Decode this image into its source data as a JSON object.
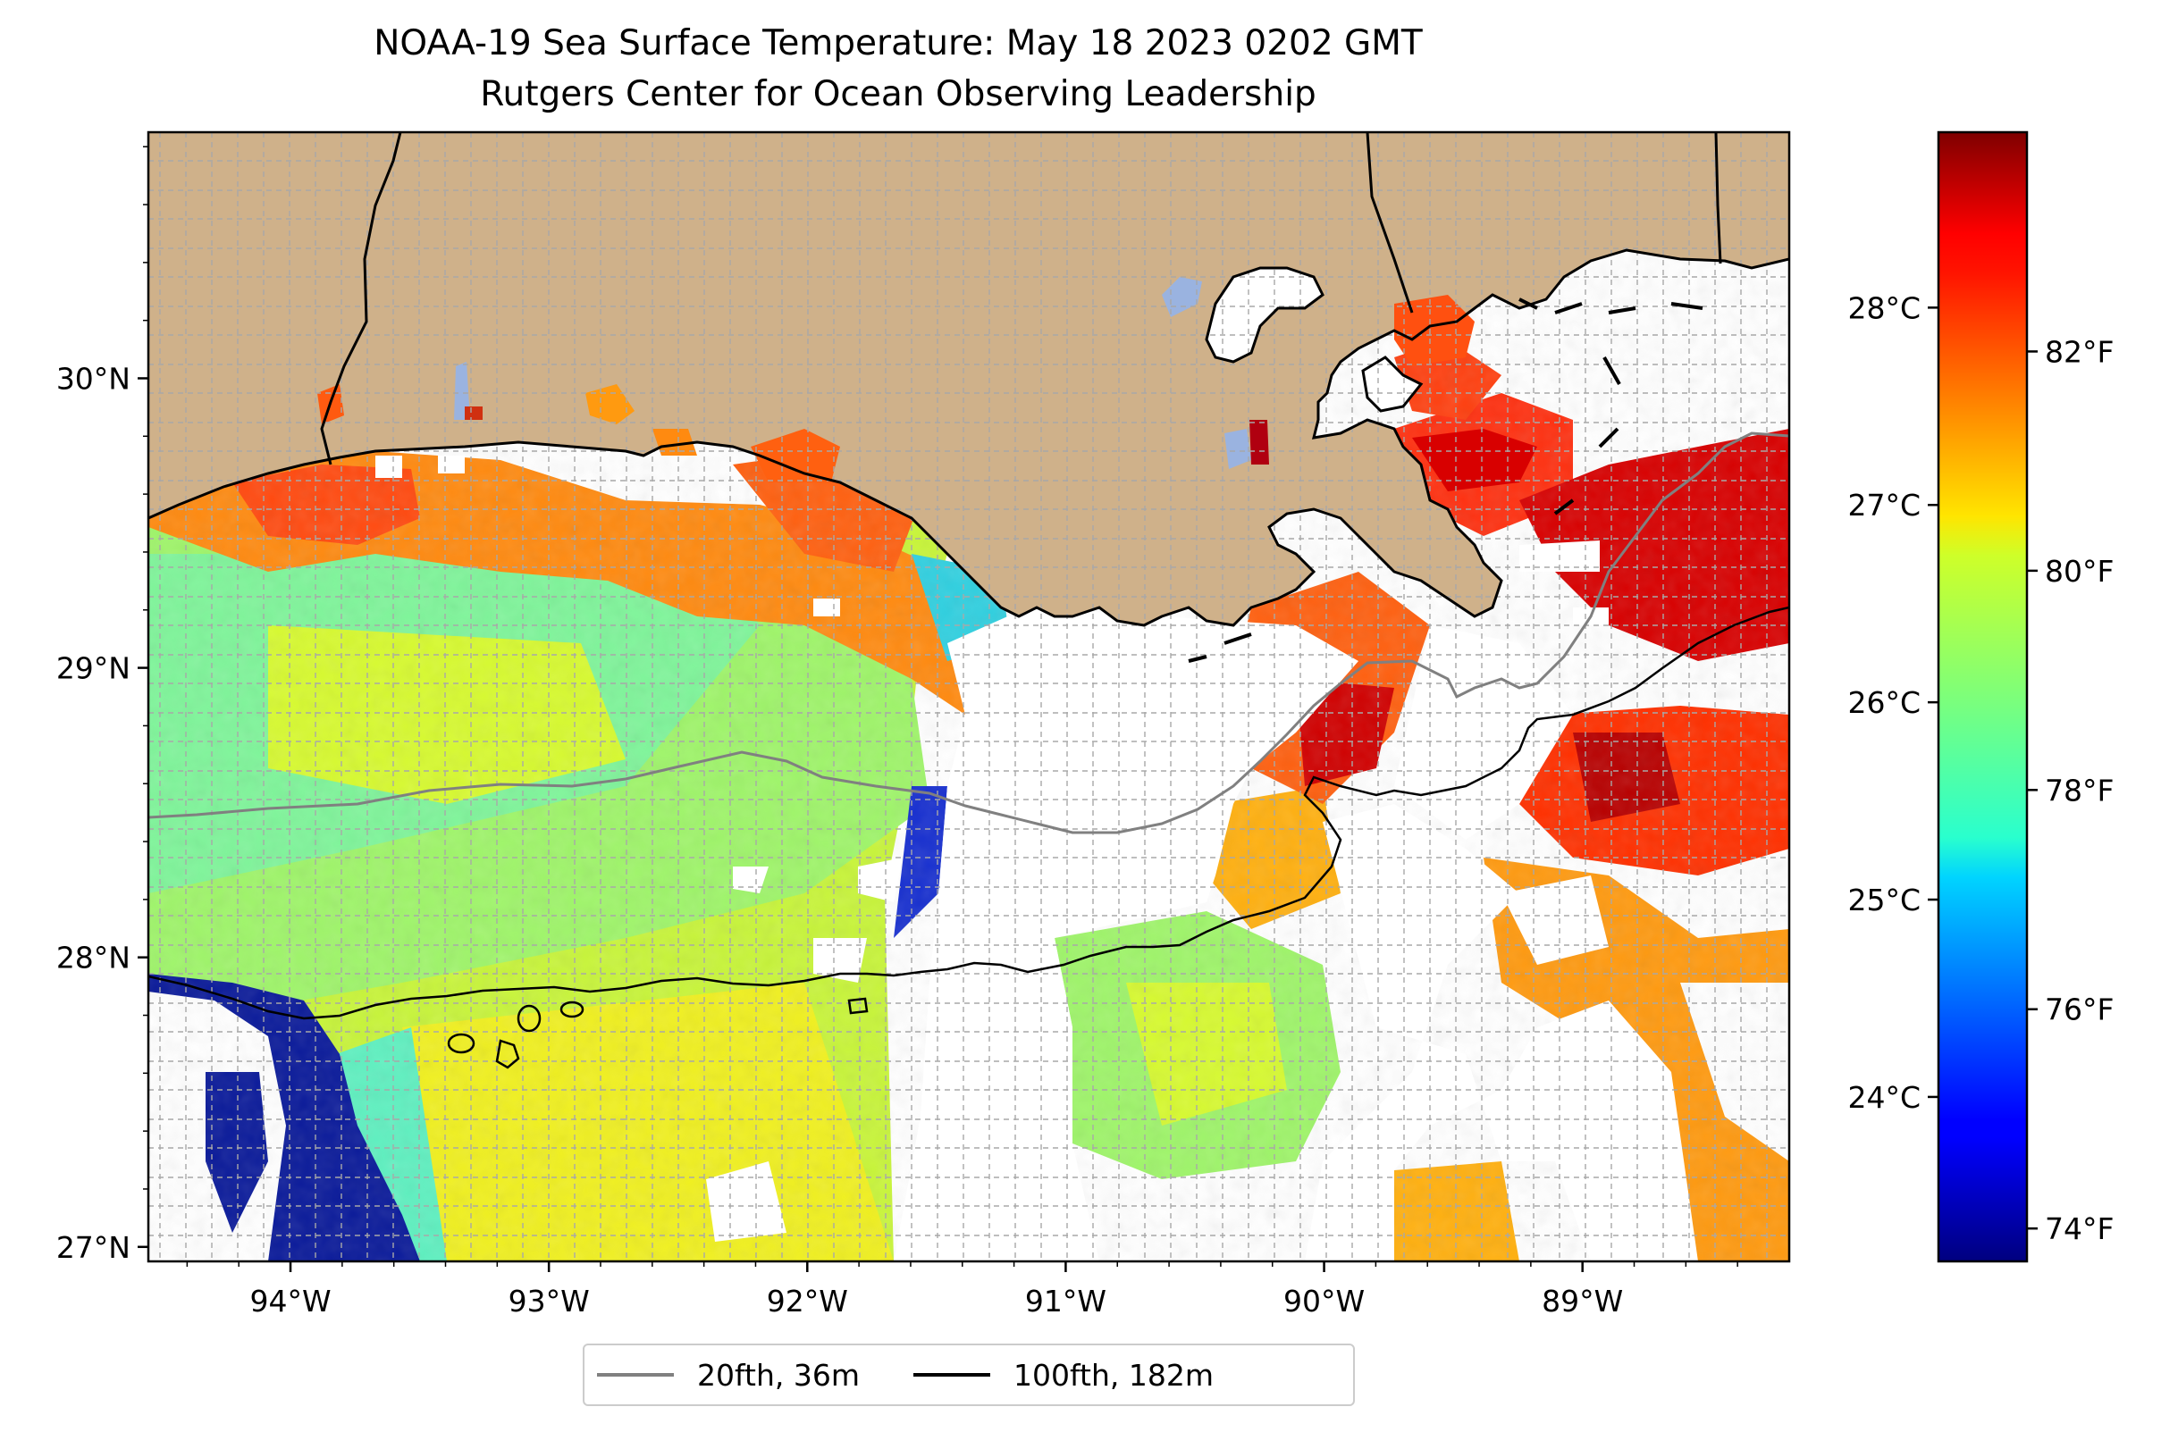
{
  "title": "NOAA-19 Sea Surface Temperature: May 18 2023 0202 GMT",
  "subtitle": "Rutgers Center for Ocean Observing Leadership",
  "colors": {
    "land": "#cfb18a",
    "lakes": "#9ab3e0",
    "coastline": "#000000",
    "isobath_20fth": "#808080",
    "isobath_100fth": "#000000",
    "cloud_nodata": "#ffffff",
    "colormap": "jet"
  },
  "map": {
    "lon_range": [
      -94.55,
      -88.2
    ],
    "lat_range": [
      26.95,
      30.85
    ],
    "lon_ticks": [
      -94,
      -93,
      -92,
      -91,
      -90,
      -89
    ],
    "lon_tick_labels": [
      "94°W",
      "93°W",
      "92°W",
      "91°W",
      "90°W",
      "89°W"
    ],
    "lat_ticks": [
      27,
      28,
      29,
      30
    ],
    "lat_tick_labels": [
      "27°N",
      "28°N",
      "29°N",
      "30°N"
    ],
    "gridlines": true
  },
  "colorbar": {
    "range_f": [
      73.7,
      84.0
    ],
    "celsius_ticks": [
      24,
      25,
      26,
      27,
      28
    ],
    "celsius_labels": [
      "24°C",
      "25°C",
      "26°C",
      "27°C",
      "28°C"
    ],
    "fahrenheit_ticks": [
      74,
      76,
      78,
      80,
      82
    ],
    "fahrenheit_labels": [
      "74°F",
      "76°F",
      "78°F",
      "80°F",
      "82°F"
    ]
  },
  "legend": {
    "items": [
      {
        "label": "20fth, 36m",
        "color": "#808080"
      },
      {
        "label": "100fth, 182m",
        "color": "#000000"
      }
    ]
  }
}
